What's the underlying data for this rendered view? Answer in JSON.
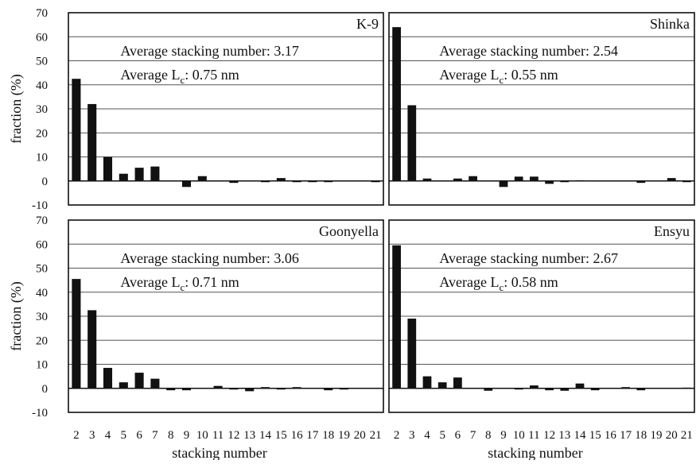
{
  "chart_data": [
    {
      "type": "bar",
      "panel_label": "K-9",
      "annotation_lines": [
        {
          "text": "Average stacking number: 3.17"
        },
        {
          "prefix": "Average L",
          "sub": "c",
          "suffix": ": 0.75 nm"
        }
      ],
      "categories": [
        "2",
        "3",
        "4",
        "5",
        "6",
        "7",
        "8",
        "9",
        "10",
        "11",
        "12",
        "13",
        "14",
        "15",
        "16",
        "17",
        "18",
        "19",
        "20",
        "21"
      ],
      "values": [
        42.5,
        32.0,
        10.0,
        3.0,
        5.5,
        6.0,
        0.0,
        -2.5,
        2.0,
        0.0,
        -0.8,
        0.0,
        -0.3,
        1.2,
        -0.3,
        -0.3,
        -0.3,
        0.0,
        0.0,
        -0.3
      ],
      "ylabel": "fraction (%)",
      "xlabel": "",
      "ylim": [
        -10,
        70
      ],
      "yticks": [
        -10,
        0,
        10,
        20,
        30,
        40,
        50,
        60,
        70
      ],
      "grid": true
    },
    {
      "type": "bar",
      "panel_label": "Shinka",
      "annotation_lines": [
        {
          "text": "Average stacking number: 2.54"
        },
        {
          "prefix": "Average L",
          "sub": "c",
          "suffix": ": 0.55 nm"
        }
      ],
      "categories": [
        "2",
        "3",
        "4",
        "5",
        "6",
        "7",
        "8",
        "9",
        "10",
        "11",
        "12",
        "13",
        "14",
        "15",
        "16",
        "17",
        "18",
        "19",
        "20",
        "21"
      ],
      "values": [
        64.0,
        31.5,
        1.0,
        0.0,
        1.0,
        2.0,
        0.0,
        -2.5,
        1.8,
        1.8,
        -1.2,
        -0.3,
        0.3,
        0.0,
        0.0,
        0.0,
        -0.8,
        0.0,
        1.2,
        -0.3
      ],
      "ylabel": "",
      "xlabel": "",
      "ylim": [
        -10,
        70
      ],
      "yticks": [],
      "grid": true
    },
    {
      "type": "bar",
      "panel_label": "Goonyella",
      "annotation_lines": [
        {
          "text": "Average stacking number: 3.06"
        },
        {
          "prefix": "Average L",
          "sub": "c",
          "suffix": ": 0.71 nm"
        }
      ],
      "categories": [
        "2",
        "3",
        "4",
        "5",
        "6",
        "7",
        "8",
        "9",
        "10",
        "11",
        "12",
        "13",
        "14",
        "15",
        "16",
        "17",
        "18",
        "19",
        "20",
        "21"
      ],
      "values": [
        45.5,
        32.5,
        8.5,
        2.5,
        6.5,
        4.0,
        -0.8,
        -0.8,
        0.0,
        1.0,
        -0.5,
        -1.2,
        0.5,
        -0.3,
        0.5,
        0.0,
        -0.8,
        -0.3,
        0.0,
        0.0
      ],
      "ylabel": "fraction (%)",
      "xlabel": "stacking number",
      "ylim": [
        -10,
        70
      ],
      "yticks": [
        -10,
        0,
        10,
        20,
        30,
        40,
        50,
        60,
        70
      ],
      "grid": true
    },
    {
      "type": "bar",
      "panel_label": "Ensyu",
      "annotation_lines": [
        {
          "text": "Average stacking number: 2.67"
        },
        {
          "prefix": "Average L",
          "sub": "c",
          "suffix": ": 0.58 nm"
        }
      ],
      "categories": [
        "2",
        "3",
        "4",
        "5",
        "6",
        "7",
        "8",
        "9",
        "10",
        "11",
        "12",
        "13",
        "14",
        "15",
        "16",
        "17",
        "18",
        "19",
        "20",
        "21"
      ],
      "values": [
        59.5,
        29.0,
        5.0,
        2.5,
        4.5,
        0.0,
        -1.0,
        0.0,
        -0.3,
        1.2,
        -0.8,
        -1.0,
        2.0,
        -0.8,
        0.0,
        0.5,
        -0.8,
        0.0,
        0.0,
        0.3
      ],
      "ylabel": "",
      "xlabel": "stacking number",
      "ylim": [
        -10,
        70
      ],
      "yticks": [],
      "grid": true
    }
  ]
}
